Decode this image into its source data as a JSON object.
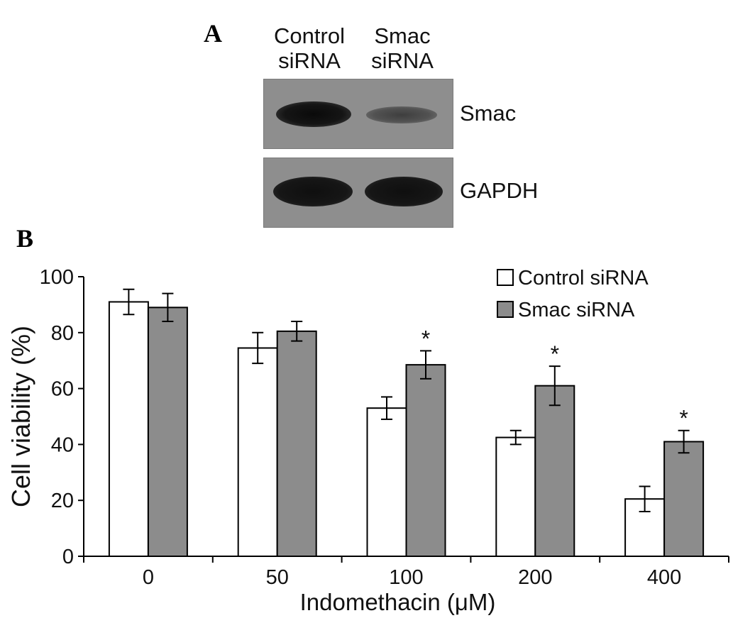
{
  "panel_a": {
    "label": "A",
    "lanes": [
      {
        "line1": "Control",
        "line2": "siRNA"
      },
      {
        "line1": "Smac",
        "line2": "siRNA"
      }
    ],
    "blots": [
      {
        "name": "Smac",
        "band_intensity": [
          1.0,
          0.35
        ]
      },
      {
        "name": "GAPDH",
        "band_intensity": [
          1.0,
          1.0
        ]
      }
    ]
  },
  "panel_b": {
    "label": "B"
  },
  "chart_data": {
    "type": "bar",
    "xlabel": "Indomethacin (μM)",
    "ylabel": "Cell viability (%)",
    "categories": [
      "0",
      "50",
      "100",
      "200",
      "400"
    ],
    "ylim": [
      0,
      100
    ],
    "yticks": [
      0,
      20,
      40,
      60,
      80,
      100
    ],
    "legend_position": "top-right",
    "series": [
      {
        "name": "Control siRNA",
        "color": "#ffffff",
        "values": [
          91,
          74.5,
          53,
          42.5,
          20.5
        ],
        "errors": [
          4.5,
          5.5,
          4,
          2.5,
          4.5
        ],
        "significant": [
          false,
          false,
          false,
          false,
          false
        ]
      },
      {
        "name": "Smac siRNA",
        "color": "#8c8c8c",
        "values": [
          89,
          80.5,
          68.5,
          61,
          41
        ],
        "errors": [
          5,
          3.5,
          5,
          7,
          4
        ],
        "significant": [
          false,
          false,
          true,
          true,
          true
        ]
      }
    ],
    "significance_marker": "*"
  }
}
